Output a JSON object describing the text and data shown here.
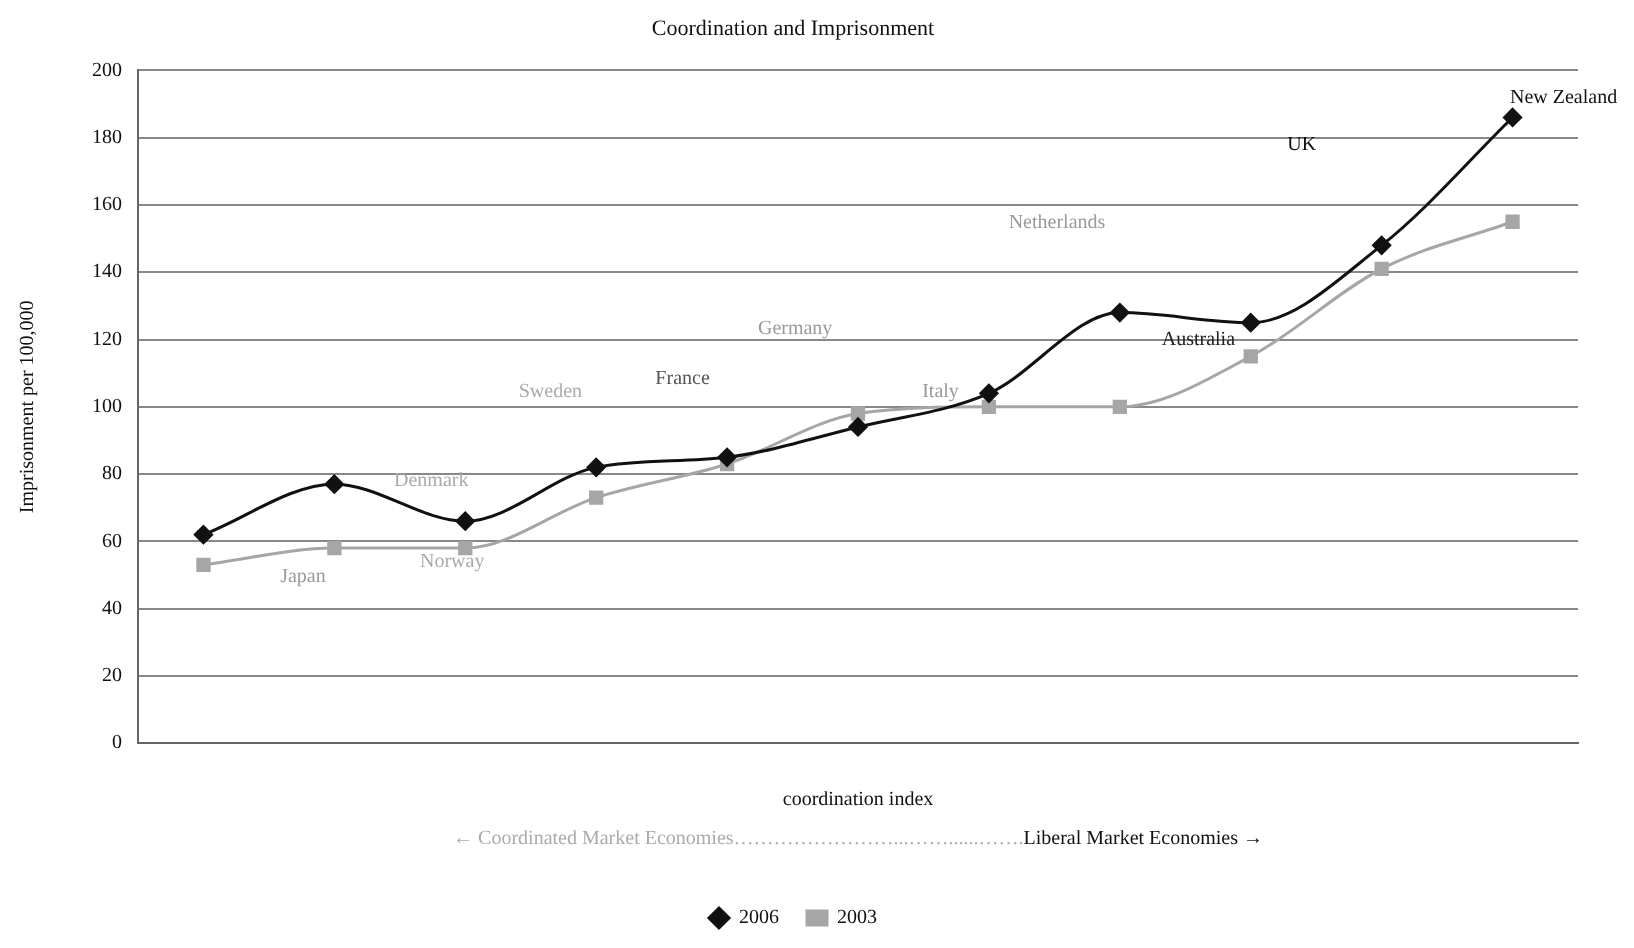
{
  "chart_data": {
    "type": "line",
    "title": "Coordination and Imprisonment",
    "xlabel": "coordination index",
    "ylabel": "Imprisonment per 100,000",
    "categories": [
      null,
      null,
      null,
      null,
      null,
      null,
      null,
      null,
      null,
      null,
      null
    ],
    "series": [
      {
        "name": "2006",
        "color": "#111111",
        "marker": "diamond",
        "values": [
          62,
          77,
          66,
          82,
          85,
          94,
          104,
          128,
          125,
          148,
          186
        ]
      },
      {
        "name": "2003",
        "color": "#a6a6a6",
        "marker": "square",
        "values": [
          53,
          58,
          58,
          73,
          83,
          98,
          100,
          100,
          115,
          141,
          155
        ]
      }
    ],
    "ylim": [
      0,
      200
    ],
    "yticks": [
      0,
      20,
      40,
      60,
      80,
      100,
      120,
      140,
      160,
      180,
      200
    ],
    "grid": "y",
    "legend": "bottom",
    "annotations": [
      "Japan",
      "Denmark",
      "Norway",
      "Sweden",
      "France",
      "Germany",
      "Italy",
      "Netherlands",
      "Australia",
      "UK",
      "New Zealand",
      "← Coordinated Market Economies……………………...……......…….",
      "Liberal Market Economies →"
    ]
  }
}
